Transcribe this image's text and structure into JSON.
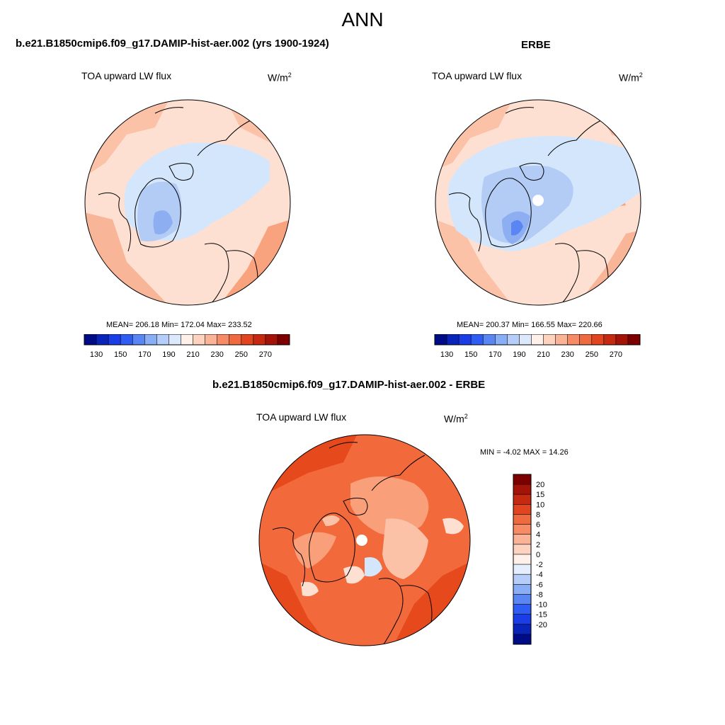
{
  "page_title": "ANN",
  "colors": {
    "ocean_light": "#fde0d2",
    "ice_blue": "#d4e6fb",
    "diff_warm": "#f26a3c",
    "diff_deep": "#e64a1c",
    "coast": "#000000"
  },
  "panels": [
    {
      "title": "b.e21.B1850cmip6.f09_g17.DAMIP-hist-aer.002 (yrs 1900-1924)",
      "var_label": "TOA upward LW flux",
      "units": "W/m",
      "units_exp": "2",
      "stats": "MEAN= 206.18  Min= 172.04  Max= 233.52",
      "projection": "north-polar-stereographic"
    },
    {
      "title": "ERBE",
      "var_label": "TOA upward LW flux",
      "units": "W/m",
      "units_exp": "2",
      "stats": "MEAN= 200.37  Min= 166.55  Max= 220.66",
      "projection": "north-polar-stereographic",
      "missing_pole": true
    },
    {
      "title": "b.e21.B1850cmip6.f09_g17.DAMIP-hist-aer.002 - ERBE",
      "var_label": "TOA upward LW flux",
      "units": "W/m",
      "units_exp": "2",
      "stats": "MIN =  -4.02 MAX =  14.26",
      "projection": "north-polar-stereographic",
      "missing_pole": true
    }
  ],
  "colorbar_abs": {
    "orientation": "horizontal",
    "tick_labels": [
      "130",
      "150",
      "170",
      "190",
      "210",
      "230",
      "250",
      "270"
    ],
    "colors": [
      "#000c85",
      "#0a23b8",
      "#1a3de6",
      "#2f5cf2",
      "#5a86f4",
      "#8aaef6",
      "#b5cdf8",
      "#dce8fb",
      "#fff1e9",
      "#fdd3bf",
      "#fbb397",
      "#f68b66",
      "#f06a40",
      "#e0451f",
      "#c52a10",
      "#a31307",
      "#7d0000"
    ]
  },
  "colorbar_diff": {
    "orientation": "vertical",
    "tick_labels": [
      "20",
      "15",
      "10",
      "8",
      "6",
      "4",
      "2",
      "0",
      "-2",
      "-4",
      "-6",
      "-8",
      "-10",
      "-15",
      "-20"
    ],
    "colors": [
      "#7d0000",
      "#a31307",
      "#c52a10",
      "#e0451f",
      "#f06a40",
      "#f68b66",
      "#fbb397",
      "#fdd3bf",
      "#fff1e9",
      "#e4eefc",
      "#b5cdf8",
      "#8aaef6",
      "#5a86f4",
      "#2f5cf2",
      "#1a3de6",
      "#0a23b8",
      "#000c85"
    ]
  }
}
